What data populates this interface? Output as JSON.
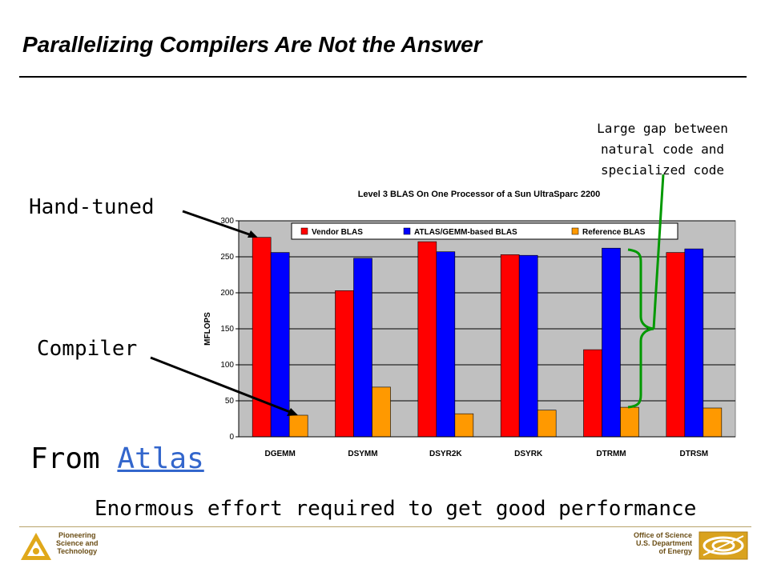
{
  "slide": {
    "title": "Parallelizing Compilers Are Not the Answer",
    "hand_tuned": "Hand-tuned",
    "compiler": "Compiler",
    "gap_note": [
      "Large gap between",
      "natural code and",
      "specialized code"
    ],
    "from_prefix": "From ",
    "from_link": "Atlas",
    "effort": "Enormous effort required to get good performance",
    "footer_left": [
      "Pioneering",
      "Science and",
      "Technology"
    ],
    "footer_right": [
      "Office of Science",
      "U.S. Department",
      "of Energy"
    ]
  },
  "chart_data": {
    "type": "bar",
    "title": "Level 3 BLAS On One Processor of a Sun UltraSparc 2200",
    "xlabel": "",
    "ylabel": "MFLOPS",
    "ylim": [
      0,
      300
    ],
    "yticks": [
      0,
      50,
      100,
      150,
      200,
      250,
      300
    ],
    "grid": true,
    "legend_position": "top",
    "categories": [
      "DGEMM",
      "DSYMM",
      "DSYR2K",
      "DSYRK",
      "DTRMM",
      "DTRSM"
    ],
    "series": [
      {
        "name": "Vendor BLAS",
        "color": "#ff0000",
        "values": [
          277,
          203,
          271,
          253,
          121,
          256
        ]
      },
      {
        "name": "ATLAS/GEMM-based BLAS",
        "color": "#0000ff",
        "values": [
          256,
          248,
          257,
          252,
          262,
          261
        ]
      },
      {
        "name": "Reference BLAS",
        "color": "#ff9900",
        "values": [
          30,
          69,
          32,
          37,
          41,
          40
        ]
      }
    ]
  }
}
